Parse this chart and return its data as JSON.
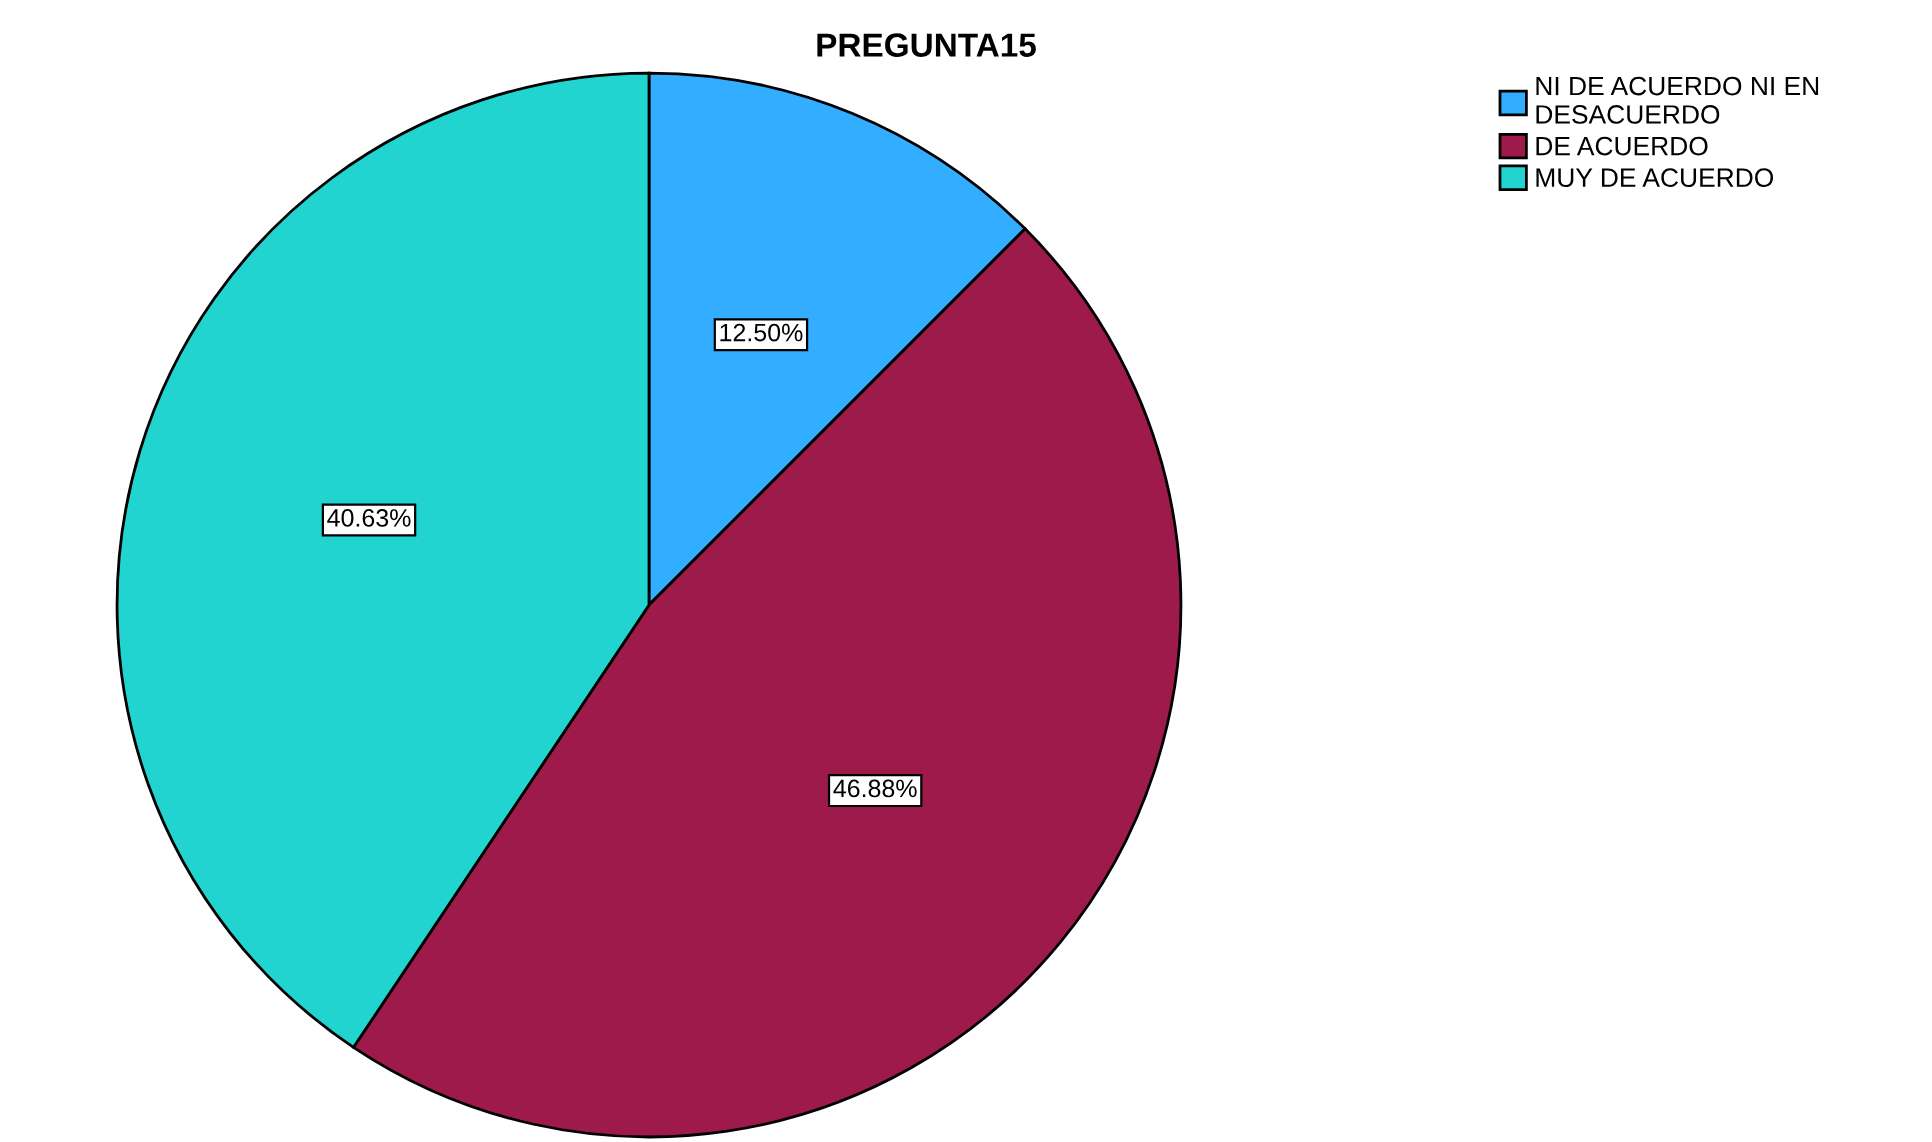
{
  "chart_data": {
    "type": "pie",
    "title": "PREGUNTA15",
    "categories": [
      "NI DE ACUERDO NI EN DESACUERDO",
      "DE ACUERDO",
      "MUY DE ACUERDO"
    ],
    "values": [
      12.5,
      46.88,
      40.63
    ],
    "value_labels": [
      "12.50%",
      "46.88%",
      "40.63%"
    ],
    "colors": [
      "#33adff",
      "#9e1a4b",
      "#21d4d0"
    ],
    "legend": "top right"
  }
}
